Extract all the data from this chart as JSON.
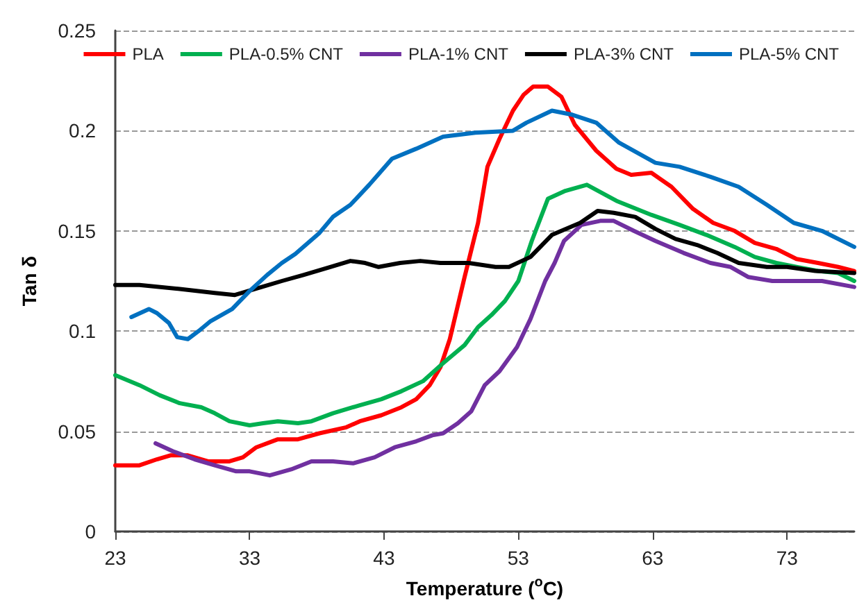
{
  "chart_data": {
    "type": "line",
    "xlabel": "Temperature ($^{o}$C)",
    "ylabel": "Tan δ",
    "xlim": [
      23,
      78
    ],
    "xticks": [
      23,
      33,
      43,
      53,
      63,
      73
    ],
    "ylim": [
      0,
      0.25
    ],
    "yticks": [
      0,
      0.05,
      0.1,
      0.15,
      0.2,
      0.25
    ],
    "grid": "y",
    "legend": "top right",
    "marker": "none",
    "line_style": "solid",
    "series": [
      {
        "name": "PLA",
        "color": "#ff0000",
        "x": [
          23,
          24.8,
          26.1,
          27.1,
          28.4,
          29.9,
          31.5,
          32.5,
          33.5,
          35.1,
          36.6,
          38.2,
          40.2,
          41.2,
          42.8,
          44.3,
          45.4,
          46.4,
          47.2,
          47.9,
          49,
          50,
          50.7,
          51.6,
          52.6,
          53.4,
          54.1,
          55.2,
          56.2,
          57.2,
          58.8,
          60.3,
          61.4,
          62.9,
          64.4,
          66,
          67.5,
          69.1,
          70.6,
          72.2,
          73.7,
          75.3,
          76.8,
          78
        ],
        "values": [
          0.033,
          0.033,
          0.036,
          0.038,
          0.038,
          0.035,
          0.035,
          0.037,
          0.042,
          0.046,
          0.046,
          0.049,
          0.052,
          0.055,
          0.058,
          0.062,
          0.066,
          0.073,
          0.082,
          0.096,
          0.127,
          0.154,
          0.182,
          0.196,
          0.21,
          0.218,
          0.222,
          0.222,
          0.217,
          0.203,
          0.19,
          0.181,
          0.178,
          0.179,
          0.172,
          0.161,
          0.154,
          0.15,
          0.144,
          0.141,
          0.136,
          0.134,
          0.132,
          0.13
        ]
      },
      {
        "name": "PLA-0.5% CNT",
        "color": "#00b050",
        "x": [
          23,
          24.8,
          26.3,
          27.8,
          29.4,
          30.4,
          31.5,
          33,
          34,
          35.1,
          36.6,
          37.6,
          39.2,
          41.2,
          42.8,
          44.3,
          45.9,
          47.4,
          49,
          50,
          51,
          52,
          53,
          54,
          55.2,
          56.5,
          58.1,
          60.3,
          62.9,
          65,
          67,
          69.1,
          70.6,
          72.2,
          73.7,
          75.3,
          76.8,
          78
        ],
        "values": [
          0.078,
          0.073,
          0.068,
          0.064,
          0.062,
          0.059,
          0.055,
          0.053,
          0.054,
          0.055,
          0.054,
          0.055,
          0.059,
          0.063,
          0.066,
          0.07,
          0.075,
          0.084,
          0.093,
          0.102,
          0.108,
          0.115,
          0.125,
          0.145,
          0.166,
          0.17,
          0.173,
          0.165,
          0.158,
          0.153,
          0.148,
          0.142,
          0.137,
          0.134,
          0.132,
          0.13,
          0.129,
          0.125
        ]
      },
      {
        "name": "PLA-1% CNT",
        "color": "#7030a0",
        "x": [
          26,
          27.3,
          28.9,
          30.4,
          32,
          33,
          34.5,
          36.1,
          37.6,
          39.2,
          40.7,
          42.3,
          43.8,
          45.4,
          46.6,
          47.4,
          48.5,
          49.5,
          50.5,
          51.6,
          52.9,
          53.9,
          55,
          55.7,
          56.4,
          57.7,
          59.1,
          60.1,
          61.6,
          63.2,
          65.3,
          67.3,
          68.8,
          70.1,
          71.9,
          73.5,
          75.6,
          78
        ],
        "values": [
          0.044,
          0.04,
          0.036,
          0.033,
          0.03,
          0.03,
          0.028,
          0.031,
          0.035,
          0.035,
          0.034,
          0.037,
          0.042,
          0.045,
          0.048,
          0.049,
          0.054,
          0.06,
          0.073,
          0.08,
          0.092,
          0.106,
          0.125,
          0.134,
          0.145,
          0.153,
          0.155,
          0.155,
          0.15,
          0.145,
          0.139,
          0.134,
          0.132,
          0.127,
          0.125,
          0.125,
          0.125,
          0.122
        ]
      },
      {
        "name": "PLA-3% CNT",
        "color": "#000000",
        "x": [
          23,
          24.8,
          27.8,
          30.4,
          31.9,
          33.9,
          35.4,
          37,
          39,
          40.5,
          41.6,
          42.6,
          44.2,
          45.7,
          47.2,
          49.3,
          51.3,
          52.3,
          53.9,
          55.5,
          57.6,
          58.9,
          60.1,
          61.7,
          63.2,
          64.7,
          66.3,
          67.8,
          69.4,
          71.5,
          73,
          75.1,
          78
        ],
        "values": [
          0.123,
          0.123,
          0.121,
          0.119,
          0.118,
          0.122,
          0.125,
          0.128,
          0.132,
          0.135,
          0.134,
          0.132,
          0.134,
          0.135,
          0.134,
          0.134,
          0.132,
          0.132,
          0.137,
          0.148,
          0.154,
          0.16,
          0.159,
          0.157,
          0.151,
          0.146,
          0.143,
          0.139,
          0.134,
          0.132,
          0.132,
          0.13,
          0.129
        ]
      },
      {
        "name": "PLA-5% CNT",
        "color": "#0070c0",
        "x": [
          24.2,
          25.5,
          26.1,
          27,
          27.6,
          28.4,
          29.2,
          30.1,
          31.7,
          33,
          34.3,
          35.4,
          36.4,
          38.2,
          39.2,
          40.5,
          41.9,
          43.6,
          45.4,
          47.4,
          49.8,
          52.6,
          53.6,
          55.5,
          57,
          58.8,
          60.5,
          63.2,
          65,
          67.3,
          69.4,
          71.5,
          73.5,
          75.6,
          78
        ],
        "values": [
          0.107,
          0.111,
          0.109,
          0.104,
          0.097,
          0.096,
          0.1,
          0.105,
          0.111,
          0.12,
          0.128,
          0.134,
          0.1385,
          0.149,
          0.157,
          0.163,
          0.173,
          0.186,
          0.191,
          0.197,
          0.199,
          0.2,
          0.204,
          0.21,
          0.208,
          0.204,
          0.194,
          0.184,
          0.182,
          0.177,
          0.172,
          0.163,
          0.154,
          0.15,
          0.142
        ]
      }
    ]
  }
}
